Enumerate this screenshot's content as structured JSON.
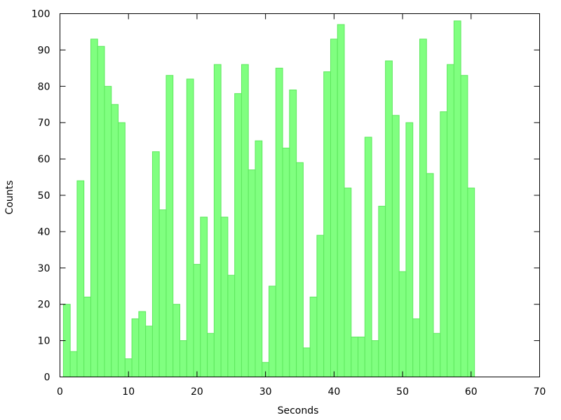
{
  "chart_data": {
    "type": "bar",
    "xlabel": "Seconds",
    "ylabel": "Counts",
    "xlim": [
      0,
      70
    ],
    "ylim": [
      0,
      100
    ],
    "x_ticks": [
      0,
      10,
      20,
      30,
      40,
      50,
      60,
      70
    ],
    "y_ticks": [
      0,
      10,
      20,
      30,
      40,
      50,
      60,
      70,
      80,
      90,
      100
    ],
    "grid": false,
    "bar_color": "#80ff80",
    "bar_edge_color": "#5ee85e",
    "bar_width": 1,
    "x": [
      1,
      2,
      3,
      4,
      5,
      6,
      7,
      8,
      9,
      10,
      11,
      12,
      13,
      14,
      15,
      16,
      17,
      18,
      19,
      20,
      21,
      22,
      23,
      24,
      25,
      26,
      27,
      28,
      29,
      30,
      31,
      32,
      33,
      34,
      35,
      36,
      37,
      38,
      39,
      40,
      41,
      42,
      43,
      44,
      45,
      46,
      47,
      48,
      49,
      50,
      51,
      52,
      53,
      54,
      55,
      56,
      57,
      58,
      59,
      60
    ],
    "values": [
      20,
      7,
      54,
      22,
      93,
      91,
      80,
      75,
      70,
      5,
      16,
      18,
      14,
      62,
      46,
      83,
      20,
      10,
      82,
      31,
      44,
      12,
      86,
      44,
      28,
      78,
      86,
      57,
      65,
      4,
      25,
      85,
      63,
      79,
      59,
      8,
      22,
      39,
      84,
      93,
      97,
      52,
      11,
      11,
      66,
      10,
      47,
      87,
      72,
      29,
      70,
      16,
      93,
      56,
      12,
      73,
      86,
      98,
      83,
      52
    ]
  }
}
